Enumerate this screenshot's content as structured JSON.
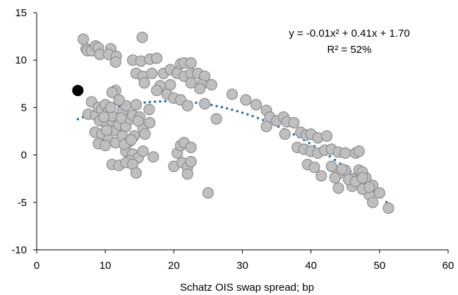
{
  "chart_data": {
    "type": "scatter",
    "title": "",
    "xlabel": "Schatz OIS swap spread; bp",
    "ylabel": "",
    "xlim": [
      0,
      60
    ],
    "ylim": [
      -10,
      15
    ],
    "xticks": [
      0,
      10,
      20,
      30,
      40,
      50,
      60
    ],
    "yticks": [
      -10,
      -5,
      0,
      5,
      10,
      15
    ],
    "grid": false,
    "annotation": {
      "equation": "y = -0.01x² + 0.41x + 1.70",
      "r_squared": "R² = 52%"
    },
    "trendline": {
      "type": "polynomial",
      "coefficients": [
        -0.0106,
        0.41,
        1.7
      ],
      "x_range": [
        6,
        51
      ],
      "color": "#1f6fa8"
    },
    "highlight_point": {
      "x": 6,
      "y": 6.8
    },
    "series": [
      {
        "color": "#bfbfbf",
        "points": [
          [
            6.8,
            12.2
          ],
          [
            7.2,
            11.2
          ],
          [
            7.4,
            11.0
          ],
          [
            8.0,
            11.0
          ],
          [
            8.6,
            11.5
          ],
          [
            9.0,
            11.3
          ],
          [
            9.2,
            10.6
          ],
          [
            10.8,
            11.2
          ],
          [
            10.5,
            10.6
          ],
          [
            11.6,
            10.4
          ],
          [
            11.5,
            9.8
          ],
          [
            14.0,
            10.0
          ],
          [
            15.4,
            12.4
          ],
          [
            15.2,
            9.9
          ],
          [
            16.5,
            10.1
          ],
          [
            17.5,
            10.2
          ],
          [
            14.5,
            8.6
          ],
          [
            15.5,
            8.3
          ],
          [
            16.8,
            8.6
          ],
          [
            15.7,
            7.6
          ],
          [
            18.5,
            8.6
          ],
          [
            18.0,
            7.3
          ],
          [
            17.5,
            6.8
          ],
          [
            19.5,
            7.4
          ],
          [
            19.5,
            9.0
          ],
          [
            21.0,
            9.6
          ],
          [
            21.5,
            9.7
          ],
          [
            22.5,
            9.7
          ],
          [
            20.5,
            8.6
          ],
          [
            21.5,
            8.3
          ],
          [
            22.5,
            8.6
          ],
          [
            23.5,
            8.6
          ],
          [
            24.5,
            8.3
          ],
          [
            22.5,
            7.6
          ],
          [
            24.0,
            7.4
          ],
          [
            25.5,
            7.4
          ],
          [
            23.8,
            7.0
          ],
          [
            19.0,
            6.4
          ],
          [
            20.0,
            6.0
          ],
          [
            21.0,
            5.8
          ],
          [
            22.0,
            5.2
          ],
          [
            24.5,
            5.4
          ],
          [
            26.2,
            3.8
          ],
          [
            28.5,
            6.4
          ],
          [
            30.5,
            5.8
          ],
          [
            32.0,
            5.3
          ],
          [
            33.5,
            4.7
          ],
          [
            34.0,
            4.0
          ],
          [
            35.0,
            3.6
          ],
          [
            36.0,
            4.0
          ],
          [
            36.5,
            3.5
          ],
          [
            33.5,
            3.0
          ],
          [
            36.2,
            2.2
          ],
          [
            37.5,
            3.4
          ],
          [
            38.5,
            2.4
          ],
          [
            39.3,
            2.1
          ],
          [
            40.0,
            2.2
          ],
          [
            41.0,
            1.8
          ],
          [
            42.3,
            2.0
          ],
          [
            38.0,
            0.8
          ],
          [
            39.0,
            0.6
          ],
          [
            40.0,
            0.4
          ],
          [
            41.0,
            0.2
          ],
          [
            42.0,
            0.5
          ],
          [
            43.0,
            0.6
          ],
          [
            44.0,
            0.3
          ],
          [
            45.0,
            0.2
          ],
          [
            46.5,
            0.2
          ],
          [
            47.0,
            0.4
          ],
          [
            39.5,
            -1.0
          ],
          [
            40.5,
            -1.3
          ],
          [
            41.5,
            -2.2
          ],
          [
            43.0,
            -1.2
          ],
          [
            44.0,
            -2.0
          ],
          [
            45.0,
            -1.6
          ],
          [
            46.0,
            -2.5
          ],
          [
            47.0,
            -1.6
          ],
          [
            48.0,
            -2.4
          ],
          [
            49.0,
            -3.2
          ],
          [
            48.5,
            -4.2
          ],
          [
            49.0,
            -5.0
          ],
          [
            50.0,
            -4.0
          ],
          [
            51.3,
            -5.6
          ],
          [
            46.0,
            -3.3
          ],
          [
            47.5,
            -3.6
          ],
          [
            44.0,
            -3.5
          ],
          [
            45.5,
            -2.6
          ],
          [
            46.5,
            -2.8
          ],
          [
            47.5,
            -1.8
          ],
          [
            47.5,
            -2.4
          ],
          [
            48.5,
            -3.4
          ],
          [
            43.5,
            -2.4
          ],
          [
            44.5,
            -1.5
          ],
          [
            7.5,
            4.3
          ],
          [
            8.0,
            5.6
          ],
          [
            8.6,
            4.2
          ],
          [
            9.0,
            5.0
          ],
          [
            9.5,
            4.8
          ],
          [
            10.0,
            5.3
          ],
          [
            10.5,
            4.6
          ],
          [
            9.2,
            3.6
          ],
          [
            10.2,
            3.3
          ],
          [
            11.0,
            3.6
          ],
          [
            11.5,
            2.6
          ],
          [
            12.0,
            3.2
          ],
          [
            13.0,
            3.0
          ],
          [
            13.6,
            3.8
          ],
          [
            14.0,
            4.2
          ],
          [
            14.5,
            5.3
          ],
          [
            15.0,
            4.0
          ],
          [
            12.5,
            4.6
          ],
          [
            13.0,
            5.2
          ],
          [
            11.5,
            6.8
          ],
          [
            11.0,
            6.6
          ],
          [
            8.5,
            2.4
          ],
          [
            9.5,
            2.2
          ],
          [
            10.5,
            1.6
          ],
          [
            11.5,
            1.3
          ],
          [
            12.5,
            2.0
          ],
          [
            13.5,
            1.4
          ],
          [
            14.2,
            2.0
          ],
          [
            15.5,
            2.8
          ],
          [
            16.5,
            3.4
          ],
          [
            9.0,
            1.2
          ],
          [
            10.0,
            1.0
          ],
          [
            13.0,
            0.4
          ],
          [
            14.0,
            0.1
          ],
          [
            14.8,
            -0.3
          ],
          [
            15.5,
            0.4
          ],
          [
            17.0,
            -0.2
          ],
          [
            13.5,
            -0.6
          ],
          [
            11.0,
            -1.0
          ],
          [
            12.0,
            -1.1
          ],
          [
            13.0,
            -0.8
          ],
          [
            14.0,
            -1.0
          ],
          [
            14.5,
            -1.9
          ],
          [
            20.0,
            -1.2
          ],
          [
            20.5,
            0.2
          ],
          [
            21.0,
            1.0
          ],
          [
            21.5,
            1.3
          ],
          [
            22.5,
            0.8
          ],
          [
            21.2,
            -0.8
          ],
          [
            22.0,
            -1.3
          ],
          [
            22.5,
            -0.7
          ],
          [
            22.0,
            -2.0
          ],
          [
            25.0,
            -4.0
          ],
          [
            12.0,
            5.8
          ],
          [
            11.0,
            4.1
          ],
          [
            12.3,
            3.9
          ],
          [
            14.8,
            3.6
          ],
          [
            15.8,
            2.2
          ],
          [
            10.2,
            2.6
          ],
          [
            12.8,
            1.1
          ],
          [
            13.8,
            1.6
          ],
          [
            9.8,
            4.0
          ],
          [
            10.8,
            5.0
          ],
          [
            16.4,
            4.8
          ]
        ]
      }
    ]
  }
}
